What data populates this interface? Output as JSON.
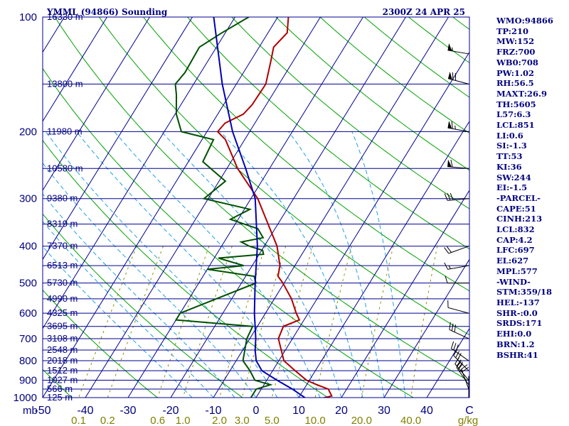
{
  "chart_data": {
    "type": "skew-t log-p sounding",
    "title": "YMML (94866) Sounding",
    "valid_time": "2300Z 24 APR 25",
    "pressure_axis": {
      "ticks": [
        100,
        200,
        300,
        400,
        500,
        600,
        700,
        800,
        900,
        1000
      ],
      "prefix": "mb",
      "range": [
        100,
        1000
      ]
    },
    "temperature_axis": {
      "ticks": [
        -50,
        -40,
        -30,
        -20,
        -10,
        0,
        10,
        20,
        30,
        40
      ],
      "end_label": "C",
      "range": [
        -50,
        50
      ]
    },
    "mixing_ratio_axis": {
      "ticks": [
        "0.1",
        "0.2",
        "0.6",
        "1.0",
        "2.0",
        "3.0",
        "5.0",
        "10.0",
        "20.0",
        "40.0"
      ],
      "values": [
        0.1,
        0.2,
        0.6,
        1.0,
        2.0,
        3.0,
        5.0,
        10.0,
        20.0,
        40.0
      ],
      "unit": "g/kg"
    },
    "height_labels": [
      {
        "p": 100,
        "label": "16330 m"
      },
      {
        "p": 150,
        "label": "13800 m"
      },
      {
        "p": 200,
        "label": "11980 m"
      },
      {
        "p": 250,
        "label": "10580 m"
      },
      {
        "p": 300,
        "label": "9380 m"
      },
      {
        "p": 350,
        "label": "8319 m"
      },
      {
        "p": 400,
        "label": "7370 m"
      },
      {
        "p": 450,
        "label": "6513 m"
      },
      {
        "p": 500,
        "label": "5730 m"
      },
      {
        "p": 550,
        "label": "4990 m"
      },
      {
        "p": 600,
        "label": "4325 m"
      },
      {
        "p": 650,
        "label": "3695 m"
      },
      {
        "p": 700,
        "label": "3108 m"
      },
      {
        "p": 750,
        "label": "2548 m"
      },
      {
        "p": 800,
        "label": "2018 m"
      },
      {
        "p": 850,
        "label": "1512 m"
      },
      {
        "p": 900,
        "label": "1027 m"
      },
      {
        "p": 950,
        "label": "566 m"
      },
      {
        "p": 1000,
        "label": "125 m"
      }
    ],
    "series": [
      {
        "name": "temperature",
        "color": "#b00000",
        "points": [
          [
            1011,
            14.5
          ],
          [
            990,
            17.5
          ],
          [
            950,
            15.7
          ],
          [
            925,
            12.4
          ],
          [
            900,
            9.3
          ],
          [
            850,
            5.3
          ],
          [
            800,
            1.2
          ],
          [
            700,
            -3.3
          ],
          [
            650,
            -3.9
          ],
          [
            625,
            -1.1
          ],
          [
            600,
            -2.8
          ],
          [
            550,
            -6.0
          ],
          [
            500,
            -10.3
          ],
          [
            480,
            -12.4
          ],
          [
            450,
            -13.5
          ],
          [
            400,
            -17.0
          ],
          [
            350,
            -22.3
          ],
          [
            300,
            -28.4
          ],
          [
            250,
            -37.5
          ],
          [
            210,
            -44.5
          ],
          [
            200,
            -47.5
          ],
          [
            190,
            -47.0
          ],
          [
            180,
            -44.0
          ],
          [
            170,
            -43.3
          ],
          [
            150,
            -43.1
          ],
          [
            130,
            -45.3
          ],
          [
            120,
            -46.6
          ],
          [
            110,
            -45.5
          ],
          [
            100,
            -47.5
          ]
        ]
      },
      {
        "name": "dewpoint",
        "color": "#005000",
        "points": [
          [
            1011,
            -1.2
          ],
          [
            950,
            -1.2
          ],
          [
            925,
            1.5
          ],
          [
            900,
            -2.8
          ],
          [
            850,
            -5.3
          ],
          [
            800,
            -8.4
          ],
          [
            700,
            -10.7
          ],
          [
            650,
            -11.1
          ],
          [
            625,
            -30.0
          ],
          [
            600,
            -30.0
          ],
          [
            580,
            -27.5
          ],
          [
            500,
            -16.6
          ],
          [
            480,
            -18.0
          ],
          [
            460,
            -30.0
          ],
          [
            450,
            -22.0
          ],
          [
            430,
            -29.0
          ],
          [
            420,
            -19.0
          ],
          [
            410,
            -19.8
          ],
          [
            400,
            -23.5
          ],
          [
            390,
            -26.0
          ],
          [
            380,
            -21.5
          ],
          [
            360,
            -24.0
          ],
          [
            340,
            -31.8
          ],
          [
            320,
            -28.7
          ],
          [
            300,
            -41.0
          ],
          [
            270,
            -38.5
          ],
          [
            240,
            -46.6
          ],
          [
            210,
            -47.3
          ],
          [
            200,
            -56.0
          ],
          [
            180,
            -59.7
          ],
          [
            160,
            -62.5
          ],
          [
            150,
            -64.3
          ],
          [
            140,
            -63.7
          ],
          [
            120,
            -64.0
          ],
          [
            110,
            -60.8
          ],
          [
            100,
            -56.8
          ]
        ]
      },
      {
        "name": "parcel",
        "color": "#0000b0",
        "points": [
          [
            1011,
            12.3
          ],
          [
            950,
            7.3
          ],
          [
            900,
            2.4
          ],
          [
            850,
            -2.5
          ],
          [
            800,
            -5.3
          ],
          [
            750,
            -7.1
          ],
          [
            700,
            -8.6
          ],
          [
            600,
            -12.6
          ],
          [
            500,
            -16.8
          ],
          [
            400,
            -21.6
          ],
          [
            300,
            -29.0
          ],
          [
            250,
            -35.6
          ],
          [
            200,
            -44.0
          ],
          [
            150,
            -53.3
          ],
          [
            100,
            -65.0
          ]
        ]
      }
    ],
    "dry_adiabats_theta_k": [
      230,
      250,
      270,
      290,
      310,
      330,
      350,
      370,
      390,
      410,
      430,
      450,
      470,
      490,
      510,
      530,
      550
    ],
    "moist_adiabats_theta_w_c": [
      -15,
      -10,
      -5,
      0,
      5,
      10,
      15,
      20,
      25,
      30,
      35
    ],
    "wind_barbs": [
      {
        "p": 1000,
        "dir": 0,
        "kt": 5
      },
      {
        "p": 950,
        "dir": 340,
        "kt": 20
      },
      {
        "p": 925,
        "dir": 325,
        "kt": 25
      },
      {
        "p": 900,
        "dir": 320,
        "kt": 30
      },
      {
        "p": 850,
        "dir": 315,
        "kt": 30
      },
      {
        "p": 800,
        "dir": 305,
        "kt": 30
      },
      {
        "p": 700,
        "dir": 295,
        "kt": 30
      },
      {
        "p": 600,
        "dir": 285,
        "kt": 10
      },
      {
        "p": 500,
        "dir": 270,
        "kt": 10
      },
      {
        "p": 450,
        "dir": 260,
        "kt": 15
      },
      {
        "p": 400,
        "dir": 250,
        "kt": 20
      },
      {
        "p": 300,
        "dir": 265,
        "kt": 30
      },
      {
        "p": 250,
        "dir": 275,
        "kt": 60
      },
      {
        "p": 200,
        "dir": 280,
        "kt": 65
      },
      {
        "p": 150,
        "dir": 285,
        "kt": 70
      },
      {
        "p": 125,
        "dir": 280,
        "kt": 55
      },
      {
        "p": 100,
        "dir": 290,
        "kt": 45
      }
    ],
    "colors": {
      "isobar": "#000090",
      "isotherm": "#000090",
      "dry_adiabat": "#00a000",
      "moist_adiabat": "#20a0e0",
      "mixing_ratio": "#909000",
      "wind": "#000000"
    }
  },
  "stats": [
    "WMO:94866",
    "TP:210",
    "MW:152",
    "FRZ:700",
    "WB0:708",
    "PW:1.02",
    "RH:56.5",
    "MAXT:26.9",
    "TH:5605",
    "L57:6.3",
    "LCL:851",
    "LI:0.6",
    "SI:-1.3",
    "TT:53",
    "KI:36",
    "SW:244",
    "EI:-1.5",
    "-PARCEL-",
    "CAPE:51",
    "CINH:213",
    "LCL:832",
    "CAP:4.2",
    "LFC:697",
    "EL:627",
    "MPL:577",
    "-WIND-",
    "STM:359/18",
    "HEL:-137",
    "SHR-:0.0",
    "SRDS:171",
    "EHI:0.0",
    "BRN:1.2",
    "BSHR:41"
  ]
}
